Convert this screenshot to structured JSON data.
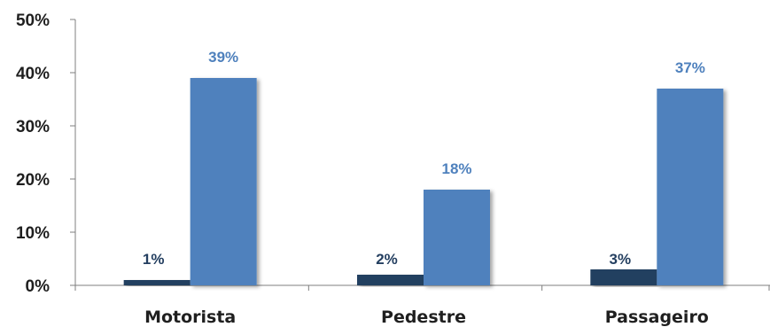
{
  "chart_data": {
    "type": "bar",
    "categories": [
      "Motorista",
      "Pedestre",
      "Passageiro"
    ],
    "series": [
      {
        "values": [
          1,
          2,
          3
        ],
        "labels": [
          "1%",
          "2%",
          "3%"
        ],
        "color": "#243f60"
      },
      {
        "values": [
          39,
          18,
          37
        ],
        "labels": [
          "39%",
          "18%",
          "37%"
        ],
        "color": "#4f81bd"
      }
    ],
    "ylim": [
      0,
      50
    ],
    "yticks": [
      0,
      10,
      20,
      30,
      40,
      50
    ],
    "ytick_labels": [
      "0%",
      "10%",
      "20%",
      "30%",
      "40%",
      "50%"
    ],
    "title": "",
    "xlabel": "",
    "ylabel": "",
    "grid": false,
    "legend": "none"
  }
}
